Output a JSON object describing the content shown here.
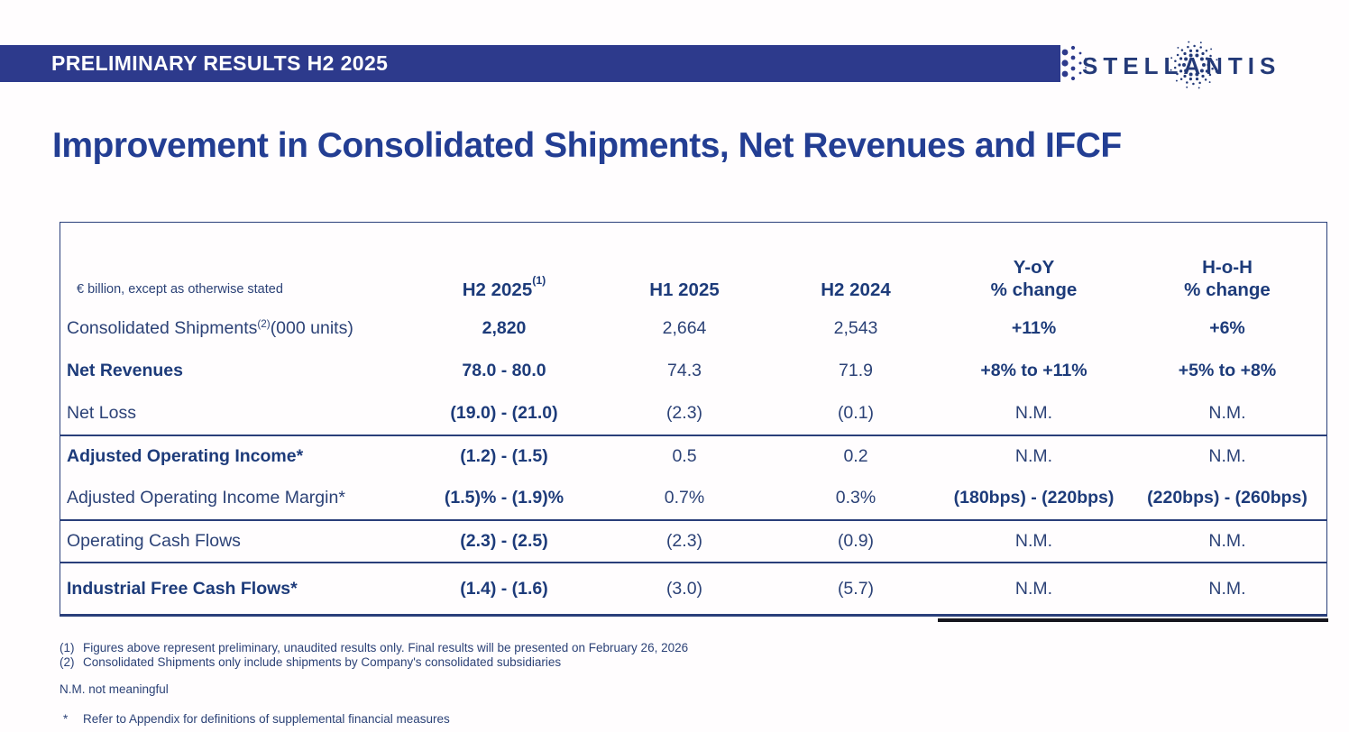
{
  "banner": {
    "title": "PRELIMINARY RESULTS H2 2025"
  },
  "logo": {
    "text": "STELLANTIS",
    "part1": "STELL",
    "letter_a": "A",
    "part2": "NTIS"
  },
  "page_title": "Improvement in Consolidated Shipments, Net Revenues and IFCF",
  "colors": {
    "banner_bg": "#2d3a8c",
    "title_text": "#233e93",
    "table_text": "#2c4277",
    "table_text_bold": "#1d3b7a",
    "border": "#2a3f7a"
  },
  "table": {
    "unit_note": "€ billion, except as otherwise stated",
    "columns": [
      {
        "line1": "H2 2025",
        "sup": "(1)",
        "line2": ""
      },
      {
        "line1": "H1 2025",
        "sup": "",
        "line2": ""
      },
      {
        "line1": "H2 2024",
        "sup": "",
        "line2": ""
      },
      {
        "line1": "Y-oY",
        "sup": "",
        "line2": "% change"
      },
      {
        "line1": "H-o-H",
        "sup": "",
        "line2": "% change"
      }
    ],
    "rows": [
      {
        "label": "Consolidated Shipments",
        "label_sup": "(2)",
        "label_suffix": " (000 units)",
        "values": [
          "2,820",
          "2,664",
          "2,543",
          "+11%",
          "+6%"
        ]
      },
      {
        "label": "Net Revenues",
        "label_sup": "",
        "label_suffix": "",
        "values": [
          "78.0 - 80.0",
          "74.3",
          "71.9",
          "+8% to +11%",
          "+5% to +8%"
        ]
      },
      {
        "label": "Net Loss",
        "label_sup": "",
        "label_suffix": "",
        "values": [
          "(19.0) - (21.0)",
          "(2.3)",
          "(0.1)",
          "N.M.",
          "N.M."
        ]
      },
      {
        "label": "Adjusted Operating Income*",
        "label_sup": "",
        "label_suffix": "",
        "values": [
          "(1.2) - (1.5)",
          "0.5",
          "0.2",
          "N.M.",
          "N.M."
        ]
      },
      {
        "label": "Adjusted Operating Income Margin*",
        "label_sup": "",
        "label_suffix": "",
        "values": [
          "(1.5)% - (1.9)%",
          "0.7%",
          "0.3%",
          "(180bps) - (220bps)",
          "(220bps) - (260bps)"
        ]
      },
      {
        "label": "Operating Cash Flows",
        "label_sup": "",
        "label_suffix": "",
        "values": [
          "(2.3) - (2.5)",
          "(2.3)",
          "(0.9)",
          "N.M.",
          "N.M."
        ]
      },
      {
        "label": "Industrial Free Cash Flows*",
        "label_sup": "",
        "label_suffix": "",
        "values": [
          "(1.4) - (1.6)",
          "(3.0)",
          "(5.7)",
          "N.M.",
          "N.M."
        ]
      }
    ]
  },
  "footnotes": {
    "items": [
      {
        "num": "(1)",
        "text": "Figures above represent preliminary, unaudited results only.  Final results will be presented on February 26, 2026"
      },
      {
        "num": "(2)",
        "text": "Consolidated Shipments only include shipments by Company's consolidated subsidiaries"
      }
    ],
    "nm_note": "N.M. not meaningful",
    "star_note": {
      "num": "*",
      "text": "Refer to Appendix for definitions of supplemental financial measures"
    }
  }
}
